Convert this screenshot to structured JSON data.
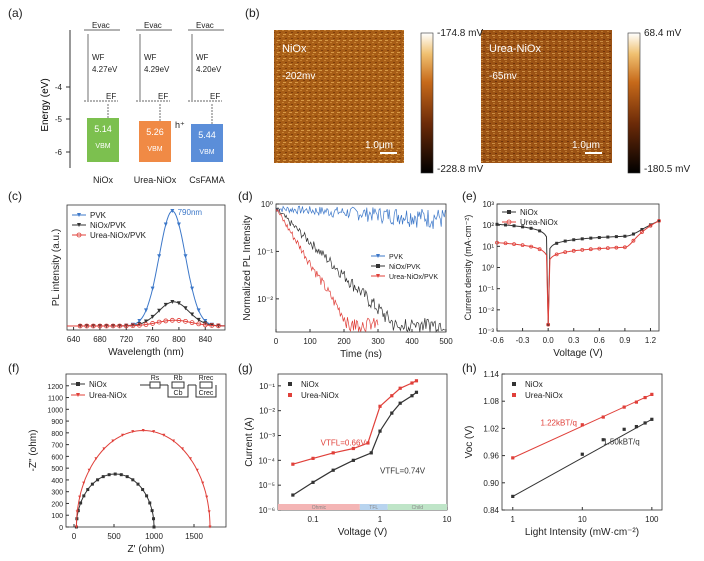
{
  "panel_letters": [
    "(a)",
    "(b)",
    "(c)",
    "(d)",
    "(e)",
    "(f)",
    "(g)",
    "(h)"
  ],
  "panel_a": {
    "ylabel": "Energy (eV)",
    "yticks": [
      "-4",
      "-5",
      "-6"
    ],
    "evac": "Evac",
    "ef": "EF",
    "hplus": "h⁺",
    "columns": [
      {
        "name": "NiOx",
        "wf": "WF",
        "wf_value": "4.27eV",
        "vbm": "5.14",
        "vbm_label": "VBM",
        "color": "#7cc04f"
      },
      {
        "name": "Urea-NiOx",
        "wf": "WF",
        "wf_value": "4.29eV",
        "vbm": "5.26",
        "vbm_label": "VBM",
        "color": "#f08a45"
      },
      {
        "name": "CsFAMA",
        "wf": "WF",
        "wf_value": "4.20eV",
        "vbm": "5.44",
        "vbm_label": "VBM",
        "color": "#5b8ed9"
      }
    ]
  },
  "panel_b": {
    "maps": [
      {
        "label": "NiOx",
        "value": "-202mv",
        "scale_bar": "1.0μm",
        "cb_max": "-174.8 mV",
        "cb_min": "-228.8 mV"
      },
      {
        "label": "Urea-NiOx",
        "value": "-65mv",
        "scale_bar": "1.0μm",
        "cb_max": "68.4 mV",
        "cb_min": "-180.5 mV"
      }
    ]
  },
  "chart_data": [
    {
      "panel": "(c)",
      "type": "line",
      "xlabel": "Wavelength (nm)",
      "ylabel": "PL intensity (a.u.)",
      "xlim": [
        630,
        870
      ],
      "xticks": [
        640,
        680,
        720,
        760,
        800,
        840
      ],
      "annotation": "790nm",
      "series": [
        {
          "name": "PVK",
          "color": "#3d78c9",
          "peak": 790,
          "height": 1.0,
          "width": 20
        },
        {
          "name": "NiOx/PVK",
          "color": "#333333",
          "peak": 792,
          "height": 0.21,
          "width": 23
        },
        {
          "name": "Urea-NiOx/PVK",
          "color": "#e0403a",
          "peak": 793,
          "height": 0.05,
          "width": 26
        }
      ]
    },
    {
      "panel": "(d)",
      "type": "line",
      "xlabel": "Time (ns)",
      "ylabel": "Normalized PL Intensity",
      "xlim": [
        0,
        500
      ],
      "ylim": [
        0.002,
        1
      ],
      "yscale": "log",
      "xticks": [
        0,
        100,
        200,
        300,
        400,
        500
      ],
      "yticks": [
        "10⁰",
        "10⁻¹",
        "10⁻²"
      ],
      "series": [
        {
          "name": "PVK",
          "color": "#3d78c9",
          "tau_ns": 1200,
          "end_ns": 500
        },
        {
          "name": "NiOx/PVK",
          "color": "#333333",
          "tau_ns": 62,
          "end_ns": 500
        },
        {
          "name": "Urea-NiOx/PVK",
          "color": "#e0403a",
          "tau_ns": 38,
          "end_ns": 300
        }
      ]
    },
    {
      "panel": "(e)",
      "type": "line",
      "xlabel": "Voltage (V)",
      "ylabel": "Current density (mA·cm⁻²)",
      "xlim": [
        -0.6,
        1.3
      ],
      "ylim": [
        0.001,
        1000
      ],
      "yscale": "log",
      "xticks": [
        "-0.6",
        "-0.3",
        "0.0",
        "0.3",
        "0.6",
        "0.9",
        "1.2"
      ],
      "yticks": [
        "10³",
        "10²",
        "10¹",
        "10⁰",
        "10⁻¹",
        "10⁻²",
        "10⁻³"
      ],
      "series": [
        {
          "name": "NiOx",
          "color": "#333333",
          "j_at_-0.6": 110,
          "j_at_0.9": 30,
          "j_at_1.3": 160
        },
        {
          "name": "Urea-NiOx",
          "color": "#e0403a",
          "j_at_-0.6": 15,
          "j_at_0.9": 9,
          "j_at_1.3": 160
        }
      ]
    },
    {
      "panel": "(f)",
      "type": "scatter",
      "xlabel": "Z' (ohm)",
      "ylabel": "-Z\" (ohm)",
      "xlim": [
        -100,
        1900
      ],
      "ylim": [
        0,
        1300
      ],
      "xticks": [
        0,
        500,
        1000,
        1500
      ],
      "yticks": [
        0,
        100,
        200,
        300,
        400,
        500,
        600,
        700,
        800,
        900,
        1000,
        1100,
        1200
      ],
      "circuit_labels": [
        "Rs",
        "Rb",
        "Cb",
        "Rrec",
        "Crec"
      ],
      "series": [
        {
          "name": "NiOx",
          "color": "#333333",
          "x_start": 30,
          "x_end": 1000,
          "peak": 450
        },
        {
          "name": "Urea-NiOx",
          "color": "#e0403a",
          "x_start": 30,
          "x_end": 1700,
          "peak": 820
        }
      ]
    },
    {
      "panel": "(g)",
      "type": "line",
      "xlabel": "Voltage (V)",
      "ylabel": "Current (A)",
      "xlim": [
        0.03,
        10
      ],
      "ylim": [
        1e-06,
        0.3
      ],
      "xscale": "log",
      "yscale": "log",
      "xticks": [
        "0.1",
        "1",
        "10"
      ],
      "yticks": [
        "10⁻¹",
        "10⁻²",
        "10⁻³",
        "10⁻⁴",
        "10⁻⁵",
        "10⁻⁶"
      ],
      "regions": [
        "Ohmic",
        "TFL",
        "Child"
      ],
      "annotations": [
        {
          "text": "VTFL=0.66V",
          "color": "#e0403a"
        },
        {
          "text": "VTFL=0.74V",
          "color": "#333333"
        }
      ],
      "series": [
        {
          "name": "NiOx",
          "color": "#333333",
          "x": [
            0.05,
            0.1,
            0.2,
            0.4,
            0.74,
            1.0,
            1.5,
            2.0,
            3.0,
            3.5
          ],
          "y": [
            4e-06,
            1.3e-05,
            4e-05,
            0.0001,
            0.0002,
            0.0015,
            0.008,
            0.02,
            0.04,
            0.055
          ]
        },
        {
          "name": "Urea-NiOx",
          "color": "#e0403a",
          "x": [
            0.05,
            0.1,
            0.2,
            0.4,
            0.66,
            1.0,
            1.5,
            2.0,
            3.0,
            3.5
          ],
          "y": [
            7e-05,
            0.00012,
            0.0002,
            0.0003,
            0.0005,
            0.015,
            0.04,
            0.08,
            0.13,
            0.16
          ]
        }
      ]
    },
    {
      "panel": "(h)",
      "type": "scatter",
      "xlabel": "Light Intensity (mW·cm⁻²)",
      "ylabel": "Voc (V)",
      "xlim": [
        0.7,
        140
      ],
      "ylim": [
        0.84,
        1.14
      ],
      "xscale": "log",
      "xticks": [
        "1",
        "10",
        "100"
      ],
      "yticks": [
        "0.84",
        "0.90",
        "0.96",
        "1.02",
        "1.08",
        "1.14"
      ],
      "series": [
        {
          "name": "NiOx",
          "color": "#333333",
          "fit_label": "1.50kBT/q",
          "x": [
            1,
            10,
            20,
            40,
            60,
            80,
            100
          ],
          "y": [
            0.87,
            0.963,
            0.995,
            1.018,
            1.024,
            1.032,
            1.04
          ]
        },
        {
          "name": "Urea-NiOx",
          "color": "#e0403a",
          "fit_label": "1.22kBT/q",
          "x": [
            1,
            10,
            20,
            40,
            60,
            80,
            100
          ],
          "y": [
            0.955,
            1.028,
            1.045,
            1.067,
            1.078,
            1.088,
            1.095
          ]
        }
      ]
    }
  ]
}
